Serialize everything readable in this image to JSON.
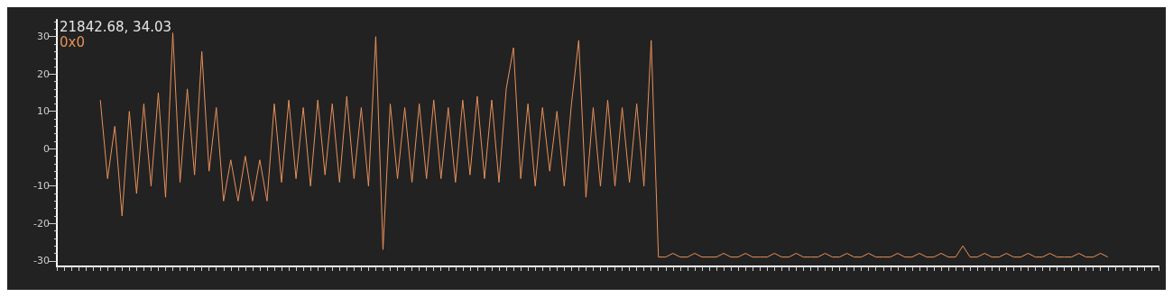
{
  "chart_data": {
    "type": "line",
    "categories": [
      null,
      null,
      null,
      null,
      null,
      null,
      null,
      null,
      null,
      null,
      null,
      null,
      null,
      null,
      null,
      null,
      null,
      null,
      null,
      null,
      null,
      null,
      null,
      null,
      null,
      null,
      null,
      null,
      null,
      null,
      null,
      null,
      null,
      null,
      null,
      null,
      null,
      null,
      null,
      null,
      null,
      null,
      null,
      null,
      null,
      null,
      null,
      null,
      null,
      null,
      null,
      null,
      null,
      null,
      null,
      null,
      null,
      null,
      null,
      null,
      null,
      null,
      null,
      null,
      null,
      null,
      null,
      null,
      null,
      null,
      null,
      null,
      null,
      null,
      null,
      null,
      null,
      null,
      null,
      null,
      null,
      null,
      null,
      null,
      null,
      null,
      null,
      null,
      null,
      null,
      null,
      null,
      null,
      null,
      null,
      null,
      null,
      null,
      null,
      null,
      null,
      null,
      null,
      null,
      null,
      null,
      null,
      null,
      null,
      null,
      null,
      null,
      null,
      null,
      null,
      null,
      null,
      null,
      null,
      null,
      null,
      null,
      null,
      null,
      null,
      null,
      null,
      null,
      null,
      null,
      null,
      null,
      null,
      null,
      null,
      null,
      null,
      null,
      null,
      null,
      null,
      null,
      null,
      null,
      null,
      null,
      null,
      null,
      null,
      null,
      null,
      null,
      null
    ],
    "series": [
      {
        "color": "#e8915a",
        "values": [
          null,
          null,
          null,
          null,
          null,
          null,
          13,
          -8,
          6,
          -18,
          10,
          -12,
          12,
          -10,
          15,
          -13,
          31,
          -9,
          16,
          -7,
          26,
          -6,
          11,
          -14,
          -3,
          -14,
          -2,
          -14,
          -3,
          -14,
          12,
          -9,
          13,
          -8,
          11,
          -10,
          13,
          -7,
          12,
          -9,
          14,
          -8,
          11,
          -10,
          30,
          -27,
          12,
          -8,
          11,
          -9,
          12,
          -8,
          13,
          -8,
          11,
          -9,
          13,
          -7,
          14,
          -8,
          13,
          -9,
          16,
          27,
          -8,
          12,
          -10,
          11,
          -6,
          10,
          -10,
          12,
          29,
          -13,
          11,
          -10,
          13,
          -10,
          11,
          -9,
          12,
          -10,
          29,
          -29,
          -29,
          -28,
          -29,
          -29,
          -28,
          -29,
          -29,
          -29,
          -28,
          -29,
          -29,
          -28,
          -29,
          -29,
          -29,
          -28,
          -29,
          -29,
          -28,
          -29,
          -29,
          -29,
          -28,
          -29,
          -29,
          -28,
          -29,
          -29,
          -28,
          -29,
          -29,
          -29,
          -28,
          -29,
          -29,
          -28,
          -29,
          -29,
          -28,
          -29,
          -29,
          -26,
          -29,
          -29,
          -28,
          -29,
          -29,
          -28,
          -29,
          -29,
          -28,
          -29,
          -29,
          -28,
          -29,
          -29,
          -29,
          -28,
          -29,
          -29,
          -28,
          -29,
          null,
          null,
          null,
          null,
          null,
          null,
          null
        ]
      }
    ],
    "ylim": [
      -31.5,
      34.5
    ],
    "yticks": [
      -30,
      -20,
      -10,
      0,
      10,
      20,
      30
    ],
    "annotations": [
      "21842.68, 34.03",
      "0x0"
    ],
    "grid": false,
    "line_style": "solid",
    "tick_labels": "y"
  }
}
